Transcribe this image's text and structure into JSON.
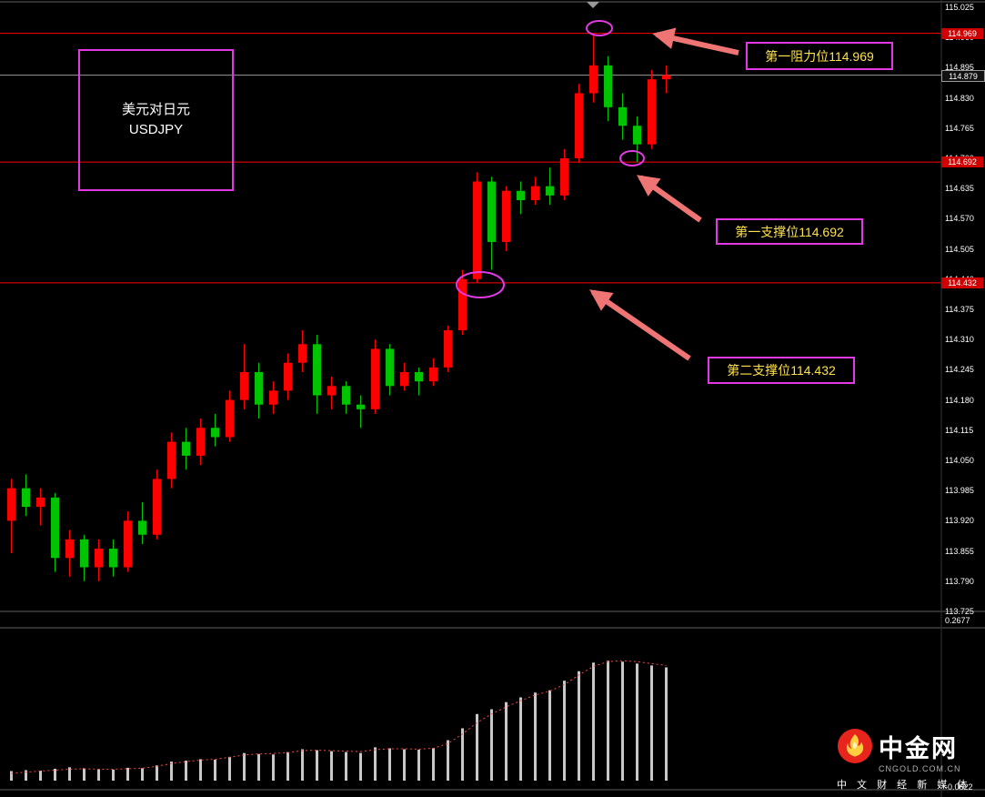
{
  "symbol_box": {
    "line1": "美元对日元",
    "line2": "USDJPY"
  },
  "annotations": {
    "resistance1": "第一阻力位114.969",
    "support1": "第一支撑位114.692",
    "support2": "第二支撑位114.432"
  },
  "axis": {
    "labels": [
      "115.025",
      "114.960",
      "114.895",
      "114.830",
      "114.765",
      "114.700",
      "114.635",
      "114.570",
      "114.505",
      "114.440",
      "114.375",
      "114.310",
      "114.245",
      "114.180",
      "114.115",
      "114.050",
      "113.985",
      "113.920",
      "113.855",
      "113.790",
      "113.725"
    ],
    "current_label": "114.879"
  },
  "indicator_labels": {
    "max_label": "0.2677",
    "min_label": "-0.0622"
  },
  "logo": {
    "name": "中金网",
    "domain": "CNGOLD.COM.CN",
    "tagline": "中 文 财 经 新 媒 体"
  },
  "colors": {
    "up": "#ff0000",
    "down": "#00c400",
    "level_line": "#ff0000",
    "level_tag": "#d00000",
    "annotation_box": "#e23ae2",
    "annotation_text": "#ffe24a",
    "arrow": "#ef7575",
    "bar": "#c8c8c8",
    "signal": "#ff4444",
    "current_line": "#9a9a9a",
    "background": "#000000"
  },
  "chart_data": {
    "type": "candlestick",
    "symbol": "USDJPY",
    "title": "美元对日元 USDJPY",
    "price_range": [
      113.725,
      115.025
    ],
    "current_price": 114.879,
    "levels": [
      {
        "price": 114.969,
        "label": "114.969",
        "role": "resistance1"
      },
      {
        "price": 114.692,
        "label": "114.692",
        "role": "support1"
      },
      {
        "price": 114.432,
        "label": "114.432",
        "role": "support2"
      }
    ],
    "candles": [
      [
        113.92,
        114.01,
        113.85,
        113.99
      ],
      [
        113.99,
        114.02,
        113.93,
        113.95
      ],
      [
        113.95,
        113.99,
        113.91,
        113.97
      ],
      [
        113.97,
        113.98,
        113.81,
        113.84
      ],
      [
        113.84,
        113.9,
        113.8,
        113.88
      ],
      [
        113.88,
        113.89,
        113.79,
        113.82
      ],
      [
        113.82,
        113.88,
        113.79,
        113.86
      ],
      [
        113.86,
        113.88,
        113.8,
        113.82
      ],
      [
        113.82,
        113.94,
        113.81,
        113.92
      ],
      [
        113.92,
        113.96,
        113.87,
        113.89
      ],
      [
        113.89,
        114.03,
        113.88,
        114.01
      ],
      [
        114.01,
        114.11,
        113.99,
        114.09
      ],
      [
        114.09,
        114.12,
        114.03,
        114.06
      ],
      [
        114.06,
        114.14,
        114.04,
        114.12
      ],
      [
        114.12,
        114.15,
        114.08,
        114.1
      ],
      [
        114.1,
        114.2,
        114.09,
        114.18
      ],
      [
        114.18,
        114.3,
        114.16,
        114.24
      ],
      [
        114.24,
        114.26,
        114.14,
        114.17
      ],
      [
        114.17,
        114.22,
        114.15,
        114.2
      ],
      [
        114.2,
        114.28,
        114.18,
        114.26
      ],
      [
        114.26,
        114.33,
        114.24,
        114.3
      ],
      [
        114.3,
        114.32,
        114.15,
        114.19
      ],
      [
        114.19,
        114.23,
        114.16,
        114.21
      ],
      [
        114.21,
        114.22,
        114.15,
        114.17
      ],
      [
        114.17,
        114.19,
        114.12,
        114.16
      ],
      [
        114.16,
        114.31,
        114.15,
        114.29
      ],
      [
        114.29,
        114.3,
        114.19,
        114.21
      ],
      [
        114.21,
        114.26,
        114.2,
        114.24
      ],
      [
        114.24,
        114.25,
        114.19,
        114.22
      ],
      [
        114.22,
        114.27,
        114.21,
        114.25
      ],
      [
        114.25,
        114.34,
        114.24,
        114.33
      ],
      [
        114.33,
        114.46,
        114.32,
        114.44
      ],
      [
        114.44,
        114.67,
        114.432,
        114.65
      ],
      [
        114.65,
        114.66,
        114.46,
        114.52
      ],
      [
        114.52,
        114.64,
        114.5,
        114.63
      ],
      [
        114.63,
        114.65,
        114.58,
        114.61
      ],
      [
        114.61,
        114.66,
        114.6,
        114.64
      ],
      [
        114.64,
        114.68,
        114.6,
        114.62
      ],
      [
        114.62,
        114.72,
        114.61,
        114.7
      ],
      [
        114.7,
        114.86,
        114.69,
        114.84
      ],
      [
        114.84,
        114.969,
        114.82,
        114.9
      ],
      [
        114.9,
        114.92,
        114.78,
        114.81
      ],
      [
        114.81,
        114.84,
        114.74,
        114.77
      ],
      [
        114.77,
        114.79,
        114.692,
        114.73
      ],
      [
        114.73,
        114.89,
        114.72,
        114.87
      ],
      [
        114.87,
        114.9,
        114.84,
        114.879
      ]
    ],
    "indicator": {
      "range": [
        -0.0622,
        0.2677
      ],
      "volume": [
        0.02,
        0.022,
        0.021,
        0.025,
        0.028,
        0.026,
        0.024,
        0.023,
        0.027,
        0.026,
        0.032,
        0.04,
        0.042,
        0.045,
        0.044,
        0.05,
        0.058,
        0.056,
        0.055,
        0.06,
        0.066,
        0.064,
        0.062,
        0.06,
        0.058,
        0.07,
        0.068,
        0.066,
        0.065,
        0.068,
        0.085,
        0.11,
        0.14,
        0.15,
        0.165,
        0.175,
        0.185,
        0.19,
        0.21,
        0.23,
        0.248,
        0.252,
        0.25,
        0.246,
        0.242,
        0.238
      ],
      "signal": [
        0.015,
        0.018,
        0.02,
        0.022,
        0.024,
        0.025,
        0.024,
        0.024,
        0.025,
        0.026,
        0.03,
        0.036,
        0.04,
        0.043,
        0.045,
        0.049,
        0.054,
        0.056,
        0.057,
        0.059,
        0.063,
        0.064,
        0.063,
        0.062,
        0.061,
        0.065,
        0.067,
        0.067,
        0.066,
        0.068,
        0.078,
        0.098,
        0.122,
        0.14,
        0.155,
        0.168,
        0.18,
        0.188,
        0.202,
        0.222,
        0.24,
        0.25,
        0.252,
        0.25,
        0.246,
        0.242
      ]
    }
  }
}
